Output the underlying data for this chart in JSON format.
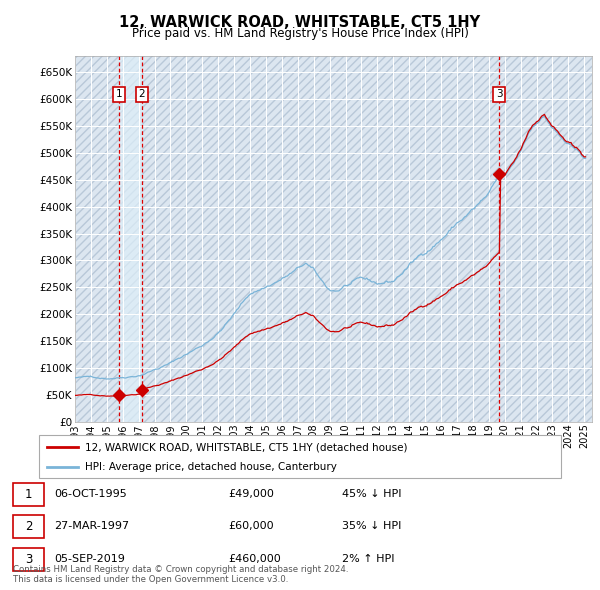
{
  "title": "12, WARWICK ROAD, WHITSTABLE, CT5 1HY",
  "subtitle": "Price paid vs. HM Land Registry's House Price Index (HPI)",
  "ylabel_ticks": [
    "£0",
    "£50K",
    "£100K",
    "£150K",
    "£200K",
    "£250K",
    "£300K",
    "£350K",
    "£400K",
    "£450K",
    "£500K",
    "£550K",
    "£600K",
    "£650K"
  ],
  "ytick_values": [
    0,
    50000,
    100000,
    150000,
    200000,
    250000,
    300000,
    350000,
    400000,
    450000,
    500000,
    550000,
    600000,
    650000
  ],
  "ylim": [
    0,
    680000
  ],
  "xlim_start": 1993.0,
  "xlim_end": 2025.5,
  "background_color": "#ffffff",
  "plot_bg_color": "#dce6f0",
  "grid_color": "#ffffff",
  "hatch_color": "#b8c8d8",
  "sale_color": "#cc0000",
  "hpi_color": "#7ab4d8",
  "dashed_line_color": "#dd0000",
  "shade_between_color": "#ddeeff",
  "legend_label_sale": "12, WARWICK ROAD, WHITSTABLE, CT5 1HY (detached house)",
  "legend_label_hpi": "HPI: Average price, detached house, Canterbury",
  "transactions": [
    {
      "num": 1,
      "date": 1995.753,
      "price": 49000,
      "label": "06-OCT-1995",
      "amount": "£49,000",
      "pct": "45% ↓ HPI"
    },
    {
      "num": 2,
      "date": 1997.203,
      "price": 60000,
      "label": "27-MAR-1997",
      "amount": "£60,000",
      "pct": "35% ↓ HPI"
    },
    {
      "num": 3,
      "date": 2019.669,
      "price": 460000,
      "label": "05-SEP-2019",
      "amount": "£460,000",
      "pct": "2% ↑ HPI"
    }
  ],
  "footer": "Contains HM Land Registry data © Crown copyright and database right 2024.\nThis data is licensed under the Open Government Licence v3.0."
}
